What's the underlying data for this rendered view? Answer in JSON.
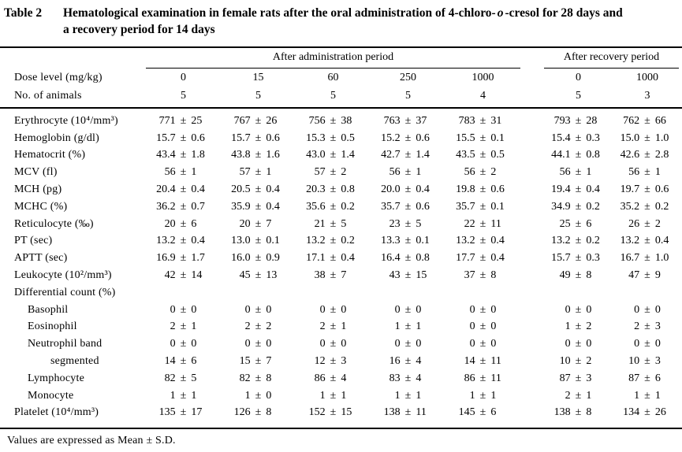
{
  "title": {
    "table_label": "Table 2",
    "line1_pre": "Hematological examination in female rats after the oral administration of 4-chloro-",
    "line1_italic": "o",
    "line1_post": "-cresol for 28 days and",
    "line2": "a recovery period for 14 days"
  },
  "symbols": {
    "plus_minus": "±"
  },
  "table": {
    "groups": [
      {
        "label": "After administration period",
        "span": 5
      },
      {
        "label": "After recovery period",
        "span": 2
      }
    ],
    "dose_row": {
      "label": "Dose level (mg/kg)",
      "values": [
        "0",
        "15",
        "60",
        "250",
        "1000",
        "0",
        "1000"
      ]
    },
    "animals_row": {
      "label": "No. of animals",
      "values": [
        "5",
        "5",
        "5",
        "5",
        "4",
        "5",
        "3"
      ]
    },
    "rows": [
      {
        "label": "Erythrocyte (10⁴/mm³)",
        "indent": 0,
        "values": [
          [
            "771",
            "25"
          ],
          [
            "767",
            "26"
          ],
          [
            "756",
            "38"
          ],
          [
            "763",
            "37"
          ],
          [
            "783",
            "31"
          ],
          [
            "793",
            "28"
          ],
          [
            "762",
            "66"
          ]
        ]
      },
      {
        "label": "Hemoglobin (g/dl)",
        "indent": 0,
        "values": [
          [
            "15.7",
            "0.6"
          ],
          [
            "15.7",
            "0.6"
          ],
          [
            "15.3",
            "0.5"
          ],
          [
            "15.2",
            "0.6"
          ],
          [
            "15.5",
            "0.1"
          ],
          [
            "15.4",
            "0.3"
          ],
          [
            "15.0",
            "1.0"
          ]
        ]
      },
      {
        "label": "Hematocrit (%)",
        "indent": 0,
        "values": [
          [
            "43.4",
            "1.8"
          ],
          [
            "43.8",
            "1.6"
          ],
          [
            "43.0",
            "1.4"
          ],
          [
            "42.7",
            "1.4"
          ],
          [
            "43.5",
            "0.5"
          ],
          [
            "44.1",
            "0.8"
          ],
          [
            "42.6",
            "2.8"
          ]
        ]
      },
      {
        "label": "MCV (fl)",
        "indent": 0,
        "values": [
          [
            "56",
            "1"
          ],
          [
            "57",
            "1"
          ],
          [
            "57",
            "2"
          ],
          [
            "56",
            "1"
          ],
          [
            "56",
            "2"
          ],
          [
            "56",
            "1"
          ],
          [
            "56",
            "1"
          ]
        ]
      },
      {
        "label": "MCH (pg)",
        "indent": 0,
        "values": [
          [
            "20.4",
            "0.4"
          ],
          [
            "20.5",
            "0.4"
          ],
          [
            "20.3",
            "0.8"
          ],
          [
            "20.0",
            "0.4"
          ],
          [
            "19.8",
            "0.6"
          ],
          [
            "19.4",
            "0.4"
          ],
          [
            "19.7",
            "0.6"
          ]
        ]
      },
      {
        "label": "MCHC (%)",
        "indent": 0,
        "values": [
          [
            "36.2",
            "0.7"
          ],
          [
            "35.9",
            "0.4"
          ],
          [
            "35.6",
            "0.2"
          ],
          [
            "35.7",
            "0.6"
          ],
          [
            "35.7",
            "0.1"
          ],
          [
            "34.9",
            "0.2"
          ],
          [
            "35.2",
            "0.2"
          ]
        ]
      },
      {
        "label": "Reticulocyte (‰)",
        "indent": 0,
        "values": [
          [
            "20",
            "6"
          ],
          [
            "20",
            "7"
          ],
          [
            "21",
            "5"
          ],
          [
            "23",
            "5"
          ],
          [
            "22",
            "11"
          ],
          [
            "25",
            "6"
          ],
          [
            "26",
            "2"
          ]
        ]
      },
      {
        "label": "PT (sec)",
        "indent": 0,
        "values": [
          [
            "13.2",
            "0.4"
          ],
          [
            "13.0",
            "0.1"
          ],
          [
            "13.2",
            "0.2"
          ],
          [
            "13.3",
            "0.1"
          ],
          [
            "13.2",
            "0.4"
          ],
          [
            "13.2",
            "0.2"
          ],
          [
            "13.2",
            "0.4"
          ]
        ]
      },
      {
        "label": "APTT (sec)",
        "indent": 0,
        "values": [
          [
            "16.9",
            "1.7"
          ],
          [
            "16.0",
            "0.9"
          ],
          [
            "17.1",
            "0.4"
          ],
          [
            "16.4",
            "0.8"
          ],
          [
            "17.7",
            "0.4"
          ],
          [
            "15.7",
            "0.3"
          ],
          [
            "16.7",
            "1.0"
          ]
        ]
      },
      {
        "label": "Leukocyte (10²/mm³)",
        "indent": 0,
        "values": [
          [
            "42",
            "14"
          ],
          [
            "45",
            "13"
          ],
          [
            "38",
            "7"
          ],
          [
            "43",
            "15"
          ],
          [
            "37",
            "8"
          ],
          [
            "49",
            "8"
          ],
          [
            "47",
            "9"
          ]
        ]
      },
      {
        "label": "Differential count (%)",
        "indent": 0,
        "values": []
      },
      {
        "label": "Basophil",
        "indent": 1,
        "values": [
          [
            "0",
            "0"
          ],
          [
            "0",
            "0"
          ],
          [
            "0",
            "0"
          ],
          [
            "0",
            "0"
          ],
          [
            "0",
            "0"
          ],
          [
            "0",
            "0"
          ],
          [
            "0",
            "0"
          ]
        ]
      },
      {
        "label": "Eosinophil",
        "indent": 1,
        "values": [
          [
            "2",
            "1"
          ],
          [
            "2",
            "2"
          ],
          [
            "2",
            "1"
          ],
          [
            "1",
            "1"
          ],
          [
            "0",
            "0"
          ],
          [
            "1",
            "2"
          ],
          [
            "2",
            "3"
          ]
        ]
      },
      {
        "label": "Neutrophil band",
        "indent": 1,
        "values": [
          [
            "0",
            "0"
          ],
          [
            "0",
            "0"
          ],
          [
            "0",
            "0"
          ],
          [
            "0",
            "0"
          ],
          [
            "0",
            "0"
          ],
          [
            "0",
            "0"
          ],
          [
            "0",
            "0"
          ]
        ]
      },
      {
        "label": "segmented",
        "indent": 2,
        "values": [
          [
            "14",
            "6"
          ],
          [
            "15",
            "7"
          ],
          [
            "12",
            "3"
          ],
          [
            "16",
            "4"
          ],
          [
            "14",
            "11"
          ],
          [
            "10",
            "2"
          ],
          [
            "10",
            "3"
          ]
        ]
      },
      {
        "label": "Lymphocyte",
        "indent": 1,
        "values": [
          [
            "82",
            "5"
          ],
          [
            "82",
            "8"
          ],
          [
            "86",
            "4"
          ],
          [
            "83",
            "4"
          ],
          [
            "86",
            "11"
          ],
          [
            "87",
            "3"
          ],
          [
            "87",
            "6"
          ]
        ]
      },
      {
        "label": "Monocyte",
        "indent": 1,
        "values": [
          [
            "1",
            "1"
          ],
          [
            "1",
            "0"
          ],
          [
            "1",
            "1"
          ],
          [
            "1",
            "1"
          ],
          [
            "1",
            "1"
          ],
          [
            "2",
            "1"
          ],
          [
            "1",
            "1"
          ]
        ]
      },
      {
        "label": "Platelet (10⁴/mm³)",
        "indent": 0,
        "values": [
          [
            "135",
            "17"
          ],
          [
            "126",
            "8"
          ],
          [
            "152",
            "15"
          ],
          [
            "138",
            "11"
          ],
          [
            "145",
            "6"
          ],
          [
            "138",
            "8"
          ],
          [
            "134",
            "26"
          ]
        ]
      }
    ]
  },
  "footnote": "Values are expressed as Mean ± S.D."
}
